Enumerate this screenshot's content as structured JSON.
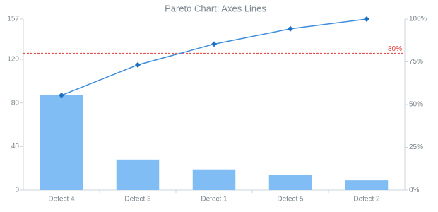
{
  "chart_data": {
    "type": "pareto",
    "title": "Pareto Chart: Axes Lines",
    "categories": [
      "Defect 4",
      "Defect 3",
      "Defect 1",
      "Defect 5",
      "Defect 2"
    ],
    "series": [
      {
        "type": "bar",
        "color": "#80bdf5",
        "values": [
          87,
          28,
          19,
          14,
          9
        ]
      },
      {
        "type": "line",
        "axis": "y2",
        "color": "#3d8ddc",
        "values": [
          55.4,
          73.2,
          85.4,
          94.3,
          100
        ]
      }
    ],
    "ylim": [
      0,
      157
    ],
    "yticks": [
      0,
      40,
      80,
      120,
      157
    ],
    "y2lim": [
      0,
      100
    ],
    "y2ticks": [
      {
        "value": 0,
        "label": "0%"
      },
      {
        "value": 25,
        "label": "25%"
      },
      {
        "value": 50,
        "label": "50%"
      },
      {
        "value": 75,
        "label": "75%"
      },
      {
        "value": 100,
        "label": "100%"
      }
    ],
    "reference_lines": [
      {
        "axis": "y2",
        "value": 80,
        "label": "80%",
        "color": "#e53935"
      }
    ]
  }
}
